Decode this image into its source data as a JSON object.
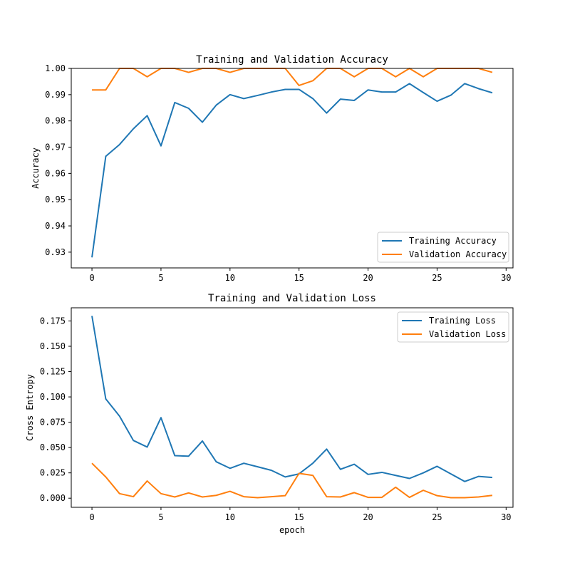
{
  "chart_data": [
    {
      "type": "line",
      "title": "Training and Validation Accuracy",
      "xlabel": "",
      "ylabel": "Accuracy",
      "xlim": [
        -1.5,
        30.5
      ],
      "ylim": [
        0.924,
        1.0
      ],
      "xticks": [
        0,
        5,
        10,
        15,
        20,
        25,
        30
      ],
      "yticks": [
        0.93,
        0.94,
        0.95,
        0.96,
        0.97,
        0.98,
        0.99,
        1.0
      ],
      "ytick_labels": [
        "0.93",
        "0.94",
        "0.95",
        "0.96",
        "0.97",
        "0.98",
        "0.99",
        "1.00"
      ],
      "legend_loc": "lower right",
      "x": [
        0,
        1,
        2,
        3,
        4,
        5,
        6,
        7,
        8,
        9,
        10,
        11,
        12,
        13,
        14,
        15,
        16,
        17,
        18,
        19,
        20,
        21,
        22,
        23,
        24,
        25,
        26,
        27,
        28,
        29
      ],
      "series": [
        {
          "name": "Training Accuracy",
          "color": "#1f77b4",
          "values": [
            0.928,
            0.9665,
            0.971,
            0.977,
            0.982,
            0.9705,
            0.987,
            0.9848,
            0.9795,
            0.986,
            0.99,
            0.9885,
            0.9897,
            0.991,
            0.992,
            0.992,
            0.9885,
            0.983,
            0.9883,
            0.9878,
            0.9918,
            0.991,
            0.991,
            0.9942,
            0.9908,
            0.9875,
            0.9898,
            0.9942,
            0.9923,
            0.9907
          ]
        },
        {
          "name": "Validation Accuracy",
          "color": "#ff7f0e",
          "values": [
            0.9918,
            0.9918,
            1.0,
            1.0,
            0.9968,
            1.0,
            1.0,
            0.9985,
            1.0,
            1.0,
            0.9985,
            1.0,
            1.0,
            1.0,
            1.0,
            0.9935,
            0.9953,
            1.0,
            1.0,
            0.9968,
            1.0,
            1.0,
            0.9968,
            1.0,
            0.9968,
            1.0,
            1.0,
            1.0,
            1.0,
            0.9985
          ]
        }
      ]
    },
    {
      "type": "line",
      "title": "Training and Validation Loss",
      "xlabel": "epoch",
      "ylabel": "Cross Entropy",
      "xlim": [
        -1.5,
        30.5
      ],
      "ylim": [
        -0.009,
        0.188
      ],
      "xticks": [
        0,
        5,
        10,
        15,
        20,
        25,
        30
      ],
      "yticks": [
        0.0,
        0.025,
        0.05,
        0.075,
        0.1,
        0.125,
        0.15,
        0.175
      ],
      "ytick_labels": [
        "0.000",
        "0.025",
        "0.050",
        "0.075",
        "0.100",
        "0.125",
        "0.150",
        "0.175"
      ],
      "legend_loc": "upper right",
      "x": [
        0,
        1,
        2,
        3,
        4,
        5,
        6,
        7,
        8,
        9,
        10,
        11,
        12,
        13,
        14,
        15,
        16,
        17,
        18,
        19,
        20,
        21,
        22,
        23,
        24,
        25,
        26,
        27,
        28,
        29
      ],
      "series": [
        {
          "name": "Training Loss",
          "color": "#1f77b4",
          "values": [
            0.18,
            0.098,
            0.081,
            0.057,
            0.0505,
            0.0795,
            0.042,
            0.0415,
            0.0565,
            0.036,
            0.0295,
            0.0345,
            0.031,
            0.0275,
            0.021,
            0.024,
            0.0345,
            0.0485,
            0.0285,
            0.0335,
            0.0235,
            0.0255,
            0.0225,
            0.0195,
            0.025,
            0.0315,
            0.024,
            0.0165,
            0.0215,
            0.0205
          ]
        },
        {
          "name": "Validation Loss",
          "color": "#ff7f0e",
          "values": [
            0.0345,
            0.021,
            0.0045,
            0.0015,
            0.017,
            0.0045,
            0.0012,
            0.0052,
            0.0012,
            0.0028,
            0.0068,
            0.0015,
            0.0005,
            0.0015,
            0.0025,
            0.0245,
            0.0225,
            0.0015,
            0.0012,
            0.0055,
            0.0008,
            0.0008,
            0.0108,
            0.0008,
            0.0078,
            0.0025,
            0.0005,
            0.0005,
            0.0012,
            0.0028
          ]
        }
      ]
    }
  ]
}
